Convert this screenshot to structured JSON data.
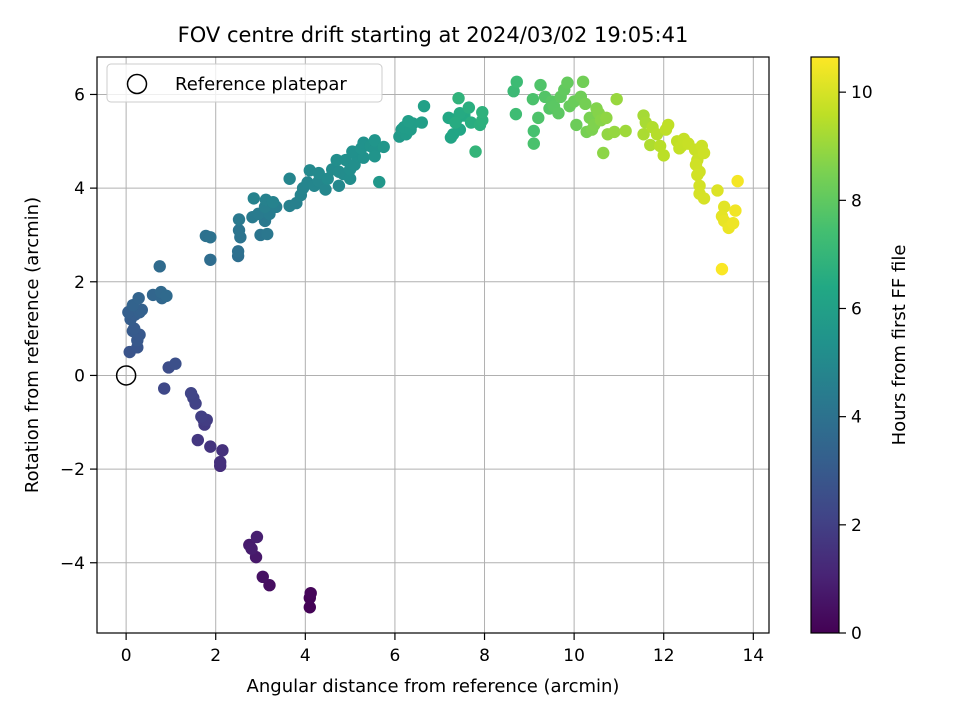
{
  "chart_data": {
    "type": "scatter",
    "title": "FOV centre drift starting at 2024/03/02 19:05:41",
    "xlabel": "Angular distance from reference (arcmin)",
    "ylabel": "Rotation from reference (arcmin)",
    "xlim": [
      -0.65,
      14.35
    ],
    "ylim": [
      -5.5,
      6.8
    ],
    "xticks": [
      0,
      2,
      4,
      6,
      8,
      10,
      12,
      14
    ],
    "yticks": [
      -4,
      -2,
      0,
      2,
      4,
      6
    ],
    "grid": true,
    "legend": {
      "placement": "top-left",
      "entries": [
        "Reference platepar"
      ]
    },
    "reference_point": {
      "x": 0,
      "y": 0,
      "label": "Reference platepar"
    },
    "colorbar": {
      "label": "Hours from first FF file",
      "range": [
        0,
        10.65
      ],
      "ticks": [
        0,
        2,
        4,
        6,
        8,
        10
      ],
      "colormap": "viridis"
    },
    "points": [
      {
        "x": 4.1,
        "y": -4.95,
        "c": 0.05
      },
      {
        "x": 4.1,
        "y": -4.75,
        "c": 0.1
      },
      {
        "x": 4.12,
        "y": -4.65,
        "c": 0.15
      },
      {
        "x": 3.2,
        "y": -4.48,
        "c": 0.4
      },
      {
        "x": 3.05,
        "y": -4.3,
        "c": 0.5
      },
      {
        "x": 2.9,
        "y": -3.88,
        "c": 0.7
      },
      {
        "x": 2.75,
        "y": -3.62,
        "c": 0.8
      },
      {
        "x": 2.8,
        "y": -3.7,
        "c": 0.85
      },
      {
        "x": 2.92,
        "y": -3.45,
        "c": 0.9
      },
      {
        "x": 2.1,
        "y": -1.93,
        "c": 1.4
      },
      {
        "x": 2.1,
        "y": -1.85,
        "c": 1.45
      },
      {
        "x": 2.15,
        "y": -1.6,
        "c": 1.5
      },
      {
        "x": 1.88,
        "y": -1.52,
        "c": 1.6
      },
      {
        "x": 1.6,
        "y": -1.38,
        "c": 1.7
      },
      {
        "x": 1.75,
        "y": -1.05,
        "c": 1.8
      },
      {
        "x": 1.73,
        "y": -0.95,
        "c": 1.85
      },
      {
        "x": 1.8,
        "y": -0.95,
        "c": 1.9
      },
      {
        "x": 1.68,
        "y": -0.88,
        "c": 1.95
      },
      {
        "x": 1.55,
        "y": -0.6,
        "c": 2.05
      },
      {
        "x": 1.5,
        "y": -0.48,
        "c": 2.1
      },
      {
        "x": 1.45,
        "y": -0.38,
        "c": 2.15
      },
      {
        "x": 0.85,
        "y": -0.28,
        "c": 2.3
      },
      {
        "x": 0.95,
        "y": 0.17,
        "c": 2.5
      },
      {
        "x": 1.1,
        "y": 0.25,
        "c": 2.6
      },
      {
        "x": 0.08,
        "y": 0.5,
        "c": 2.75
      },
      {
        "x": 0.25,
        "y": 0.6,
        "c": 2.8
      },
      {
        "x": 0.25,
        "y": 0.75,
        "c": 2.9
      },
      {
        "x": 0.3,
        "y": 0.87,
        "c": 2.95
      },
      {
        "x": 0.15,
        "y": 0.95,
        "c": 3.0
      },
      {
        "x": 0.18,
        "y": 1.0,
        "c": 3.05
      },
      {
        "x": 0.1,
        "y": 1.2,
        "c": 3.1
      },
      {
        "x": 0.2,
        "y": 1.3,
        "c": 3.15
      },
      {
        "x": 0.05,
        "y": 1.35,
        "c": 3.2
      },
      {
        "x": 0.3,
        "y": 1.35,
        "c": 3.25
      },
      {
        "x": 0.35,
        "y": 1.4,
        "c": 3.3
      },
      {
        "x": 0.15,
        "y": 1.5,
        "c": 3.35
      },
      {
        "x": 0.28,
        "y": 1.65,
        "c": 3.4
      },
      {
        "x": 0.6,
        "y": 1.72,
        "c": 3.5
      },
      {
        "x": 0.8,
        "y": 1.65,
        "c": 3.55
      },
      {
        "x": 0.78,
        "y": 1.78,
        "c": 3.6
      },
      {
        "x": 0.9,
        "y": 1.7,
        "c": 3.65
      },
      {
        "x": 0.75,
        "y": 2.33,
        "c": 3.7
      },
      {
        "x": 1.88,
        "y": 2.47,
        "c": 3.8
      },
      {
        "x": 2.5,
        "y": 2.55,
        "c": 3.85
      },
      {
        "x": 2.5,
        "y": 2.65,
        "c": 3.9
      },
      {
        "x": 1.78,
        "y": 2.98,
        "c": 3.95
      },
      {
        "x": 1.88,
        "y": 2.95,
        "c": 4.0
      },
      {
        "x": 2.55,
        "y": 2.95,
        "c": 4.05
      },
      {
        "x": 2.52,
        "y": 3.1,
        "c": 4.1
      },
      {
        "x": 3.0,
        "y": 3.0,
        "c": 4.15
      },
      {
        "x": 3.15,
        "y": 3.02,
        "c": 4.2
      },
      {
        "x": 3.1,
        "y": 3.3,
        "c": 4.25
      },
      {
        "x": 2.52,
        "y": 3.33,
        "c": 4.3
      },
      {
        "x": 2.82,
        "y": 3.38,
        "c": 4.35
      },
      {
        "x": 2.95,
        "y": 3.45,
        "c": 4.4
      },
      {
        "x": 3.2,
        "y": 3.45,
        "c": 4.45
      },
      {
        "x": 3.35,
        "y": 3.6,
        "c": 4.5
      },
      {
        "x": 3.1,
        "y": 3.6,
        "c": 4.55
      },
      {
        "x": 3.65,
        "y": 3.62,
        "c": 4.6
      },
      {
        "x": 3.8,
        "y": 3.68,
        "c": 4.62
      },
      {
        "x": 3.12,
        "y": 3.75,
        "c": 4.65
      },
      {
        "x": 3.28,
        "y": 3.7,
        "c": 4.68
      },
      {
        "x": 2.85,
        "y": 3.78,
        "c": 4.7
      },
      {
        "x": 3.9,
        "y": 3.85,
        "c": 4.72
      },
      {
        "x": 3.95,
        "y": 4.0,
        "c": 4.75
      },
      {
        "x": 3.65,
        "y": 4.2,
        "c": 4.8
      },
      {
        "x": 4.05,
        "y": 4.12,
        "c": 4.82
      },
      {
        "x": 4.2,
        "y": 4.05,
        "c": 4.85
      },
      {
        "x": 4.3,
        "y": 4.15,
        "c": 4.88
      },
      {
        "x": 4.45,
        "y": 3.97,
        "c": 4.9
      },
      {
        "x": 4.75,
        "y": 4.05,
        "c": 4.95
      },
      {
        "x": 4.1,
        "y": 4.38,
        "c": 5.0
      },
      {
        "x": 4.3,
        "y": 4.32,
        "c": 5.02
      },
      {
        "x": 4.5,
        "y": 4.2,
        "c": 5.05
      },
      {
        "x": 4.6,
        "y": 4.4,
        "c": 5.08
      },
      {
        "x": 4.75,
        "y": 4.35,
        "c": 5.1
      },
      {
        "x": 4.85,
        "y": 4.3,
        "c": 5.12
      },
      {
        "x": 5.0,
        "y": 4.2,
        "c": 5.15
      },
      {
        "x": 5.0,
        "y": 4.4,
        "c": 5.18
      },
      {
        "x": 4.7,
        "y": 4.6,
        "c": 5.2
      },
      {
        "x": 4.9,
        "y": 4.6,
        "c": 5.22
      },
      {
        "x": 5.1,
        "y": 4.5,
        "c": 5.25
      },
      {
        "x": 5.15,
        "y": 4.7,
        "c": 5.28
      },
      {
        "x": 5.05,
        "y": 4.78,
        "c": 5.3
      },
      {
        "x": 5.3,
        "y": 4.65,
        "c": 5.32
      },
      {
        "x": 5.25,
        "y": 4.85,
        "c": 5.35
      },
      {
        "x": 5.3,
        "y": 4.97,
        "c": 5.38
      },
      {
        "x": 5.45,
        "y": 4.9,
        "c": 5.4
      },
      {
        "x": 5.55,
        "y": 4.82,
        "c": 5.42
      },
      {
        "x": 5.55,
        "y": 4.68,
        "c": 5.45
      },
      {
        "x": 5.55,
        "y": 5.02,
        "c": 5.5
      },
      {
        "x": 5.75,
        "y": 4.88,
        "c": 5.55
      },
      {
        "x": 5.65,
        "y": 4.13,
        "c": 5.6
      },
      {
        "x": 6.1,
        "y": 5.1,
        "c": 5.7
      },
      {
        "x": 6.15,
        "y": 5.25,
        "c": 5.75
      },
      {
        "x": 6.25,
        "y": 5.15,
        "c": 5.8
      },
      {
        "x": 6.2,
        "y": 5.3,
        "c": 5.82
      },
      {
        "x": 6.35,
        "y": 5.25,
        "c": 5.85
      },
      {
        "x": 6.4,
        "y": 5.38,
        "c": 5.9
      },
      {
        "x": 6.3,
        "y": 5.43,
        "c": 5.92
      },
      {
        "x": 6.6,
        "y": 5.4,
        "c": 5.95
      },
      {
        "x": 6.65,
        "y": 5.75,
        "c": 6.0
      },
      {
        "x": 7.25,
        "y": 5.08,
        "c": 6.2
      },
      {
        "x": 7.3,
        "y": 5.15,
        "c": 6.25
      },
      {
        "x": 7.45,
        "y": 5.25,
        "c": 6.3
      },
      {
        "x": 7.2,
        "y": 5.5,
        "c": 6.35
      },
      {
        "x": 7.4,
        "y": 5.5,
        "c": 6.4
      },
      {
        "x": 7.55,
        "y": 5.55,
        "c": 6.45
      },
      {
        "x": 7.45,
        "y": 5.6,
        "c": 6.5
      },
      {
        "x": 7.35,
        "y": 5.4,
        "c": 6.55
      },
      {
        "x": 7.7,
        "y": 5.4,
        "c": 6.6
      },
      {
        "x": 7.65,
        "y": 5.72,
        "c": 6.65
      },
      {
        "x": 7.9,
        "y": 5.35,
        "c": 6.7
      },
      {
        "x": 7.95,
        "y": 5.45,
        "c": 6.75
      },
      {
        "x": 7.95,
        "y": 5.62,
        "c": 6.8
      },
      {
        "x": 7.42,
        "y": 5.92,
        "c": 6.85
      },
      {
        "x": 7.8,
        "y": 4.78,
        "c": 6.95
      },
      {
        "x": 8.65,
        "y": 6.07,
        "c": 7.2
      },
      {
        "x": 8.72,
        "y": 6.27,
        "c": 7.25
      },
      {
        "x": 8.7,
        "y": 5.58,
        "c": 7.3
      },
      {
        "x": 9.1,
        "y": 5.22,
        "c": 7.5
      },
      {
        "x": 9.1,
        "y": 4.95,
        "c": 7.55
      },
      {
        "x": 9.08,
        "y": 5.9,
        "c": 7.6
      },
      {
        "x": 9.2,
        "y": 5.5,
        "c": 7.65
      },
      {
        "x": 9.25,
        "y": 6.2,
        "c": 7.7
      },
      {
        "x": 9.35,
        "y": 5.95,
        "c": 7.75
      },
      {
        "x": 9.45,
        "y": 5.7,
        "c": 7.8
      },
      {
        "x": 9.5,
        "y": 5.85,
        "c": 7.85
      },
      {
        "x": 9.55,
        "y": 5.75,
        "c": 7.9
      },
      {
        "x": 9.65,
        "y": 5.6,
        "c": 7.95
      },
      {
        "x": 9.7,
        "y": 5.95,
        "c": 8.0
      },
      {
        "x": 9.78,
        "y": 6.1,
        "c": 8.05
      },
      {
        "x": 9.85,
        "y": 6.25,
        "c": 8.1
      },
      {
        "x": 9.9,
        "y": 5.75,
        "c": 8.15
      },
      {
        "x": 10.0,
        "y": 5.85,
        "c": 8.2
      },
      {
        "x": 10.05,
        "y": 5.35,
        "c": 8.25
      },
      {
        "x": 10.15,
        "y": 5.95,
        "c": 8.3
      },
      {
        "x": 10.2,
        "y": 6.27,
        "c": 8.35
      },
      {
        "x": 10.25,
        "y": 5.8,
        "c": 8.4
      },
      {
        "x": 10.28,
        "y": 5.2,
        "c": 8.45
      },
      {
        "x": 10.35,
        "y": 5.5,
        "c": 8.5
      },
      {
        "x": 10.4,
        "y": 5.25,
        "c": 8.55
      },
      {
        "x": 10.45,
        "y": 5.35,
        "c": 8.6
      },
      {
        "x": 10.5,
        "y": 5.7,
        "c": 8.65
      },
      {
        "x": 10.55,
        "y": 5.6,
        "c": 8.7
      },
      {
        "x": 10.6,
        "y": 5.45,
        "c": 8.75
      },
      {
        "x": 10.65,
        "y": 4.75,
        "c": 8.8
      },
      {
        "x": 10.72,
        "y": 5.5,
        "c": 8.85
      },
      {
        "x": 10.75,
        "y": 5.15,
        "c": 8.9
      },
      {
        "x": 10.9,
        "y": 5.2,
        "c": 8.95
      },
      {
        "x": 10.95,
        "y": 5.9,
        "c": 9.0
      },
      {
        "x": 11.15,
        "y": 5.22,
        "c": 9.1
      },
      {
        "x": 11.55,
        "y": 5.55,
        "c": 9.2
      },
      {
        "x": 11.6,
        "y": 5.4,
        "c": 9.25
      },
      {
        "x": 11.55,
        "y": 5.15,
        "c": 9.3
      },
      {
        "x": 11.7,
        "y": 4.92,
        "c": 9.35
      },
      {
        "x": 11.75,
        "y": 5.3,
        "c": 9.4
      },
      {
        "x": 11.85,
        "y": 5.15,
        "c": 9.45
      },
      {
        "x": 11.92,
        "y": 4.9,
        "c": 9.5
      },
      {
        "x": 12.0,
        "y": 4.7,
        "c": 9.55
      },
      {
        "x": 12.05,
        "y": 5.25,
        "c": 9.6
      },
      {
        "x": 12.1,
        "y": 5.35,
        "c": 9.62
      },
      {
        "x": 12.3,
        "y": 5.0,
        "c": 9.65
      },
      {
        "x": 12.35,
        "y": 4.85,
        "c": 9.68
      },
      {
        "x": 12.4,
        "y": 4.9,
        "c": 9.7
      },
      {
        "x": 12.45,
        "y": 5.05,
        "c": 9.72
      },
      {
        "x": 12.55,
        "y": 4.95,
        "c": 9.75
      },
      {
        "x": 12.7,
        "y": 4.82,
        "c": 9.78
      },
      {
        "x": 12.75,
        "y": 4.6,
        "c": 9.8
      },
      {
        "x": 12.85,
        "y": 4.9,
        "c": 9.82
      },
      {
        "x": 12.9,
        "y": 4.75,
        "c": 9.85
      },
      {
        "x": 12.72,
        "y": 4.5,
        "c": 9.88
      },
      {
        "x": 12.8,
        "y": 4.35,
        "c": 9.9
      },
      {
        "x": 12.75,
        "y": 4.28,
        "c": 9.92
      },
      {
        "x": 12.8,
        "y": 4.05,
        "c": 9.95
      },
      {
        "x": 12.8,
        "y": 3.88,
        "c": 9.98
      },
      {
        "x": 12.9,
        "y": 3.78,
        "c": 10.0
      },
      {
        "x": 13.2,
        "y": 3.95,
        "c": 10.1
      },
      {
        "x": 13.35,
        "y": 3.6,
        "c": 10.2
      },
      {
        "x": 13.3,
        "y": 3.4,
        "c": 10.25
      },
      {
        "x": 13.35,
        "y": 3.3,
        "c": 10.3
      },
      {
        "x": 13.45,
        "y": 3.15,
        "c": 10.35
      },
      {
        "x": 13.55,
        "y": 3.25,
        "c": 10.4
      },
      {
        "x": 13.6,
        "y": 3.52,
        "c": 10.45
      },
      {
        "x": 13.65,
        "y": 4.15,
        "c": 10.5
      },
      {
        "x": 13.3,
        "y": 2.27,
        "c": 10.6
      }
    ]
  }
}
